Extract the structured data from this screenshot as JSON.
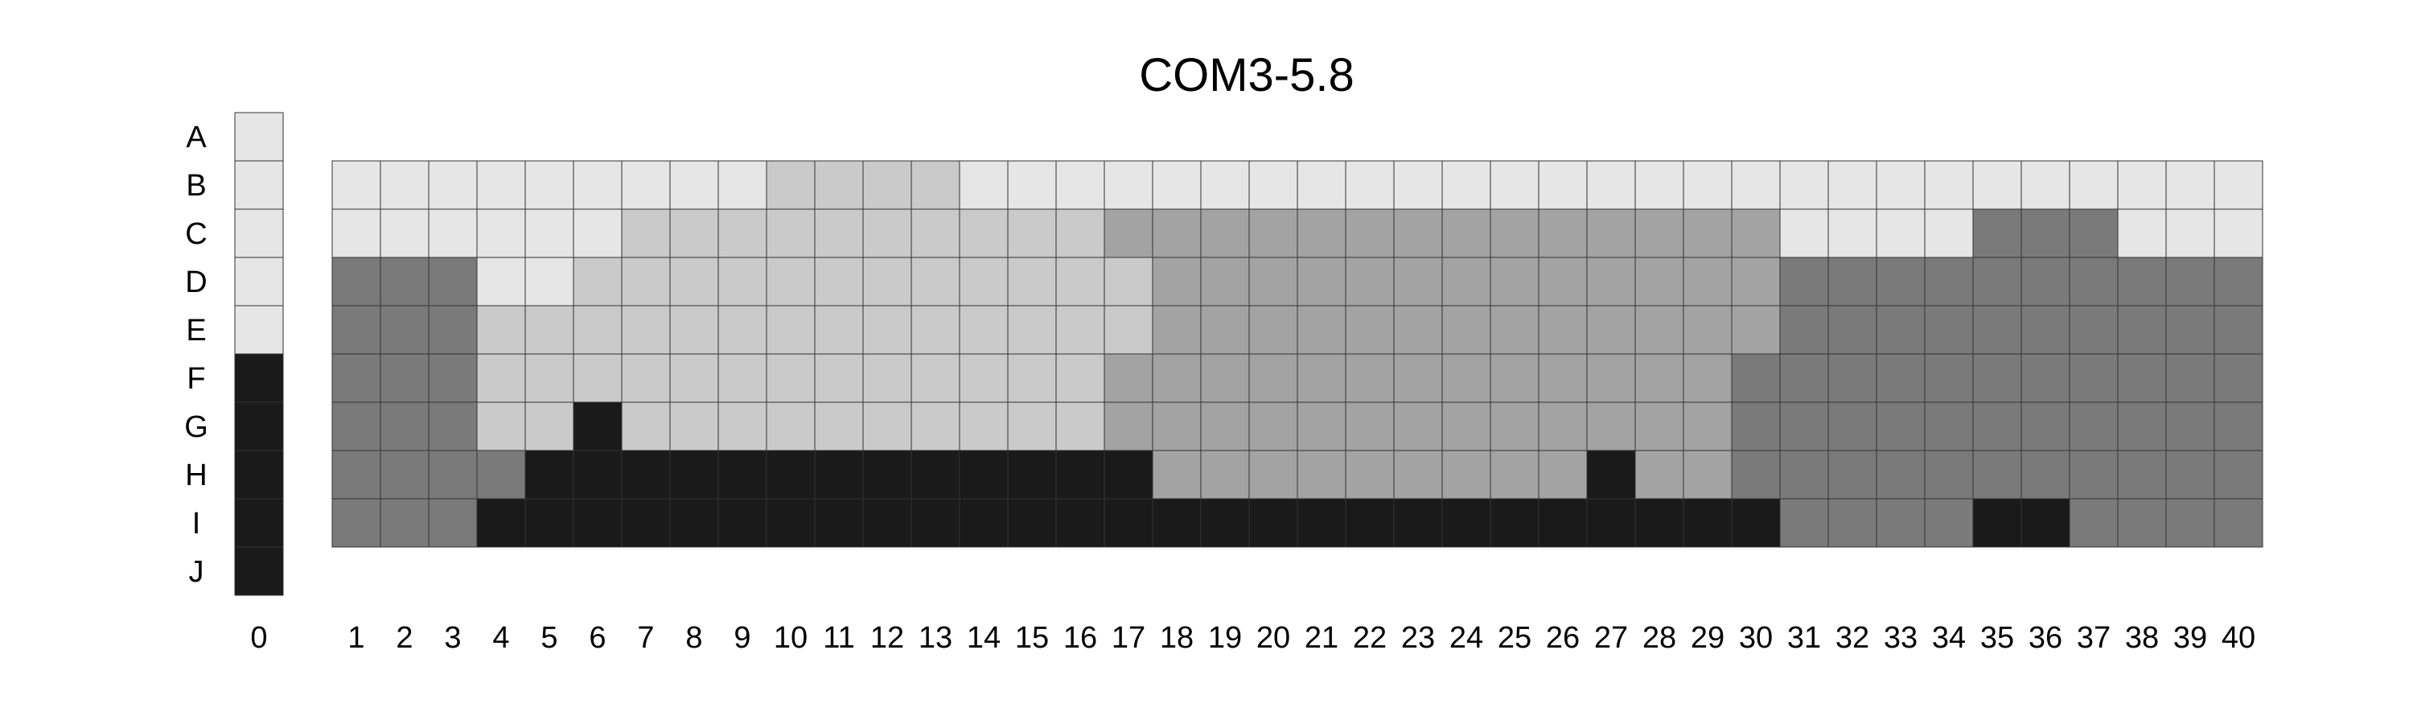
{
  "chart_data": {
    "type": "heatmap",
    "title": "COM3-5.8",
    "xlabel": "",
    "ylabel": "",
    "rows": [
      "A",
      "B",
      "C",
      "D",
      "E",
      "F",
      "G",
      "H",
      "I",
      "J"
    ],
    "key_column": {
      "label": "0",
      "cells": [
        "L",
        "L",
        "L",
        "L",
        "L",
        "B",
        "B",
        "B",
        "B",
        "B"
      ]
    },
    "columns": [
      "1",
      "2",
      "3",
      "4",
      "5",
      "6",
      "7",
      "8",
      "9",
      "10",
      "11",
      "12",
      "13",
      "14",
      "15",
      "16",
      "17",
      "18",
      "19",
      "20",
      "21",
      "22",
      "23",
      "24",
      "25",
      "26",
      "27",
      "28",
      "29",
      "30",
      "31",
      "32",
      "33",
      "34",
      "35",
      "36",
      "37",
      "38",
      "39",
      "40"
    ],
    "grid_rows": [
      "B",
      "C",
      "D",
      "E",
      "F",
      "G",
      "H",
      "I"
    ],
    "level_colors": {
      "L": "#e6e6e6",
      "M1": "#cacaca",
      "M2": "#a3a3a3",
      "D": "#7a7a7a",
      "B": "#1a1a1a"
    },
    "cells": [
      [
        "L",
        "L",
        "L",
        "L",
        "L",
        "L",
        "L",
        "L",
        "L",
        "M1",
        "M1",
        "M1",
        "M1",
        "L",
        "L",
        "L",
        "L",
        "L",
        "L",
        "L",
        "L",
        "L",
        "L",
        "L",
        "L",
        "L",
        "L",
        "L",
        "L",
        "L",
        "L",
        "L",
        "L",
        "L",
        "L",
        "L",
        "L",
        "L",
        "L",
        "L"
      ],
      [
        "L",
        "L",
        "L",
        "L",
        "L",
        "L",
        "M1",
        "M1",
        "M1",
        "M1",
        "M1",
        "M1",
        "M1",
        "M1",
        "M1",
        "M1",
        "M2",
        "M2",
        "M2",
        "M2",
        "M2",
        "M2",
        "M2",
        "M2",
        "M2",
        "M2",
        "M2",
        "M2",
        "M2",
        "M2",
        "L",
        "L",
        "L",
        "L",
        "D",
        "D",
        "D",
        "L",
        "L",
        "L"
      ],
      [
        "D",
        "D",
        "D",
        "L",
        "L",
        "M1",
        "M1",
        "M1",
        "M1",
        "M1",
        "M1",
        "M1",
        "M1",
        "M1",
        "M1",
        "M1",
        "M1",
        "M2",
        "M2",
        "M2",
        "M2",
        "M2",
        "M2",
        "M2",
        "M2",
        "M2",
        "M2",
        "M2",
        "M2",
        "M2",
        "D",
        "D",
        "D",
        "D",
        "D",
        "D",
        "D",
        "D",
        "D",
        "D"
      ],
      [
        "D",
        "D",
        "D",
        "M1",
        "M1",
        "M1",
        "M1",
        "M1",
        "M1",
        "M1",
        "M1",
        "M1",
        "M1",
        "M1",
        "M1",
        "M1",
        "M1",
        "M2",
        "M2",
        "M2",
        "M2",
        "M2",
        "M2",
        "M2",
        "M2",
        "M2",
        "M2",
        "M2",
        "M2",
        "M2",
        "D",
        "D",
        "D",
        "D",
        "D",
        "D",
        "D",
        "D",
        "D",
        "D"
      ],
      [
        "D",
        "D",
        "D",
        "M1",
        "M1",
        "M1",
        "M1",
        "M1",
        "M1",
        "M1",
        "M1",
        "M1",
        "M1",
        "M1",
        "M1",
        "M1",
        "M2",
        "M2",
        "M2",
        "M2",
        "M2",
        "M2",
        "M2",
        "M2",
        "M2",
        "M2",
        "M2",
        "M2",
        "M2",
        "D",
        "D",
        "D",
        "D",
        "D",
        "D",
        "D",
        "D",
        "D",
        "D",
        "D"
      ],
      [
        "D",
        "D",
        "D",
        "M1",
        "M1",
        "B",
        "M1",
        "M1",
        "M1",
        "M1",
        "M1",
        "M1",
        "M1",
        "M1",
        "M1",
        "M1",
        "M2",
        "M2",
        "M2",
        "M2",
        "M2",
        "M2",
        "M2",
        "M2",
        "M2",
        "M2",
        "M2",
        "M2",
        "M2",
        "D",
        "D",
        "D",
        "D",
        "D",
        "D",
        "D",
        "D",
        "D",
        "D",
        "D"
      ],
      [
        "D",
        "D",
        "D",
        "D",
        "B",
        "B",
        "B",
        "B",
        "B",
        "B",
        "B",
        "B",
        "B",
        "B",
        "B",
        "B",
        "B",
        "M2",
        "M2",
        "M2",
        "M2",
        "M2",
        "M2",
        "M2",
        "M2",
        "M2",
        "B",
        "M2",
        "M2",
        "D",
        "D",
        "D",
        "D",
        "D",
        "D",
        "D",
        "D",
        "D",
        "D",
        "D"
      ],
      [
        "D",
        "D",
        "D",
        "B",
        "B",
        "B",
        "B",
        "B",
        "B",
        "B",
        "B",
        "B",
        "B",
        "B",
        "B",
        "B",
        "B",
        "B",
        "B",
        "B",
        "B",
        "B",
        "B",
        "B",
        "B",
        "B",
        "B",
        "B",
        "B",
        "B",
        "D",
        "D",
        "D",
        "D",
        "B",
        "B",
        "D",
        "D",
        "D",
        "D"
      ]
    ]
  }
}
